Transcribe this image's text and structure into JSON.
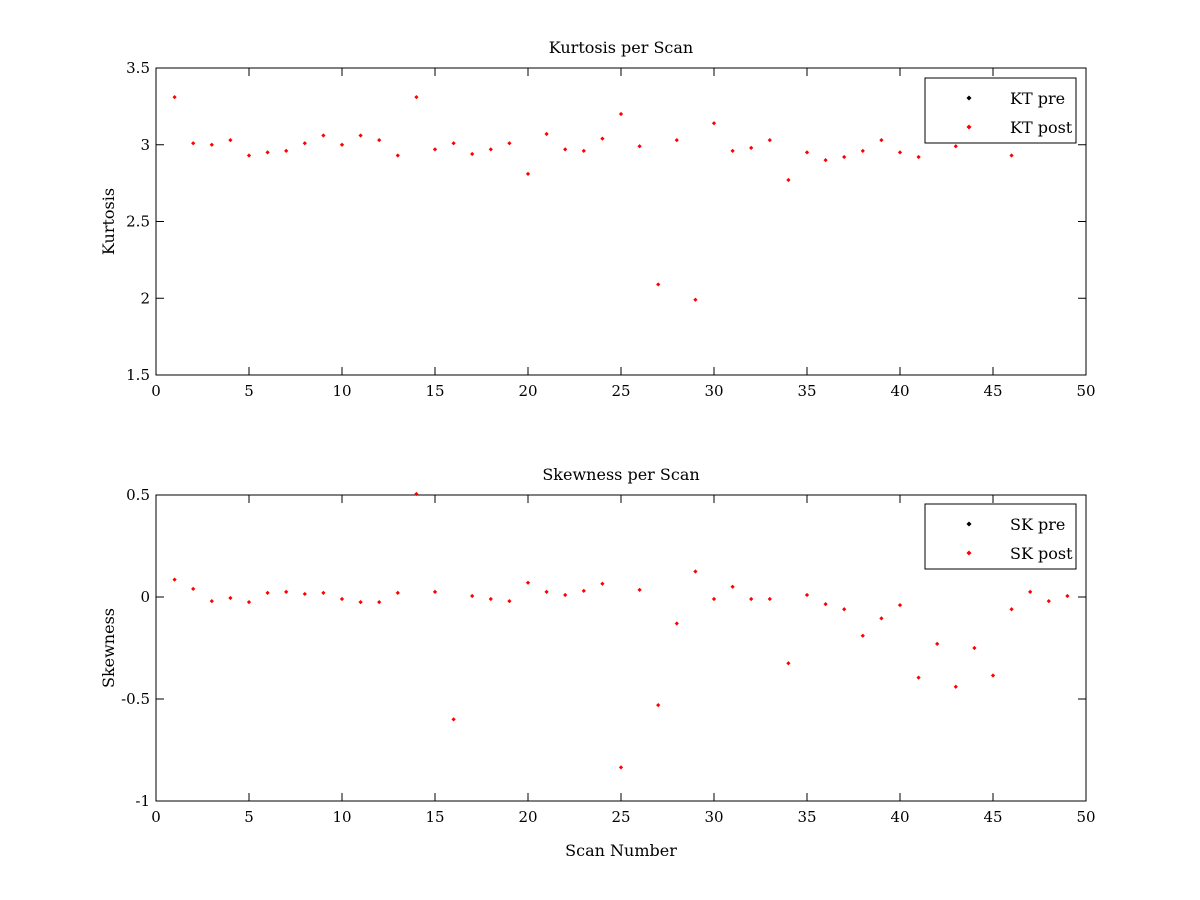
{
  "figure": {
    "background": "#ffffff"
  },
  "chart_data": [
    {
      "id": "kurtosis",
      "type": "scatter",
      "title": "Kurtosis per Scan",
      "xlabel": "",
      "ylabel": "Kurtosis",
      "xlim": [
        0,
        50
      ],
      "ylim": [
        1.5,
        3.5
      ],
      "xticks": [
        "0",
        "5",
        "10",
        "15",
        "20",
        "25",
        "30",
        "35",
        "40",
        "45",
        "50"
      ],
      "yticks": [
        "1.5",
        "2",
        "2.5",
        "3",
        "3.5"
      ],
      "grid": false,
      "legend_position": "top-right",
      "series": [
        {
          "name": "KT pre",
          "color": "#000000",
          "x": [],
          "y": []
        },
        {
          "name": "KT post",
          "color": "#ff0000",
          "x": [
            1,
            2,
            3,
            4,
            5,
            6,
            7,
            8,
            9,
            10,
            11,
            12,
            13,
            14,
            15,
            16,
            17,
            18,
            19,
            20,
            21,
            22,
            23,
            24,
            25,
            26,
            27,
            28,
            29,
            30,
            31,
            32,
            33,
            34,
            35,
            36,
            37,
            38,
            39,
            40,
            41,
            43,
            46
          ],
          "y": [
            3.31,
            3.01,
            3.0,
            3.03,
            2.93,
            2.95,
            2.96,
            3.01,
            3.06,
            3.0,
            3.06,
            3.03,
            2.93,
            3.31,
            2.97,
            3.01,
            2.94,
            2.97,
            3.01,
            2.81,
            3.07,
            2.97,
            2.96,
            3.04,
            3.2,
            2.99,
            2.09,
            3.03,
            1.99,
            3.14,
            2.96,
            2.98,
            3.03,
            2.77,
            2.95,
            2.9,
            2.92,
            2.96,
            3.03,
            2.95,
            2.92,
            2.99,
            2.93
          ]
        }
      ]
    },
    {
      "id": "skewness",
      "type": "scatter",
      "title": "Skewness per Scan",
      "xlabel": "Scan Number",
      "ylabel": "Skewness",
      "xlim": [
        0,
        50
      ],
      "ylim": [
        -1,
        0.5
      ],
      "xticks": [
        "0",
        "5",
        "10",
        "15",
        "20",
        "25",
        "30",
        "35",
        "40",
        "45",
        "50"
      ],
      "yticks": [
        "-1",
        "-0.5",
        "0",
        "0.5"
      ],
      "grid": false,
      "legend_position": "top-right",
      "series": [
        {
          "name": "SK pre",
          "color": "#000000",
          "x": [],
          "y": []
        },
        {
          "name": "SK post",
          "color": "#ff0000",
          "x": [
            1,
            2,
            3,
            4,
            5,
            6,
            7,
            8,
            9,
            10,
            11,
            12,
            13,
            14,
            15,
            16,
            17,
            18,
            19,
            20,
            21,
            22,
            23,
            24,
            25,
            26,
            27,
            28,
            29,
            30,
            31,
            32,
            33,
            34,
            35,
            36,
            37,
            38,
            39,
            40,
            41,
            42,
            43,
            44,
            45,
            46,
            47,
            48,
            49
          ],
          "y": [
            0.085,
            0.04,
            -0.02,
            -0.005,
            -0.025,
            0.02,
            0.025,
            0.015,
            0.02,
            -0.01,
            -0.025,
            -0.025,
            0.02,
            0.505,
            0.025,
            -0.6,
            0.005,
            -0.01,
            -0.02,
            0.07,
            0.025,
            0.01,
            0.03,
            0.065,
            -0.835,
            0.035,
            -0.53,
            -0.13,
            0.125,
            -0.01,
            0.05,
            -0.01,
            -0.01,
            -0.325,
            0.01,
            -0.035,
            -0.06,
            -0.19,
            -0.105,
            -0.04,
            -0.395,
            -0.23,
            -0.44,
            -0.25,
            -0.385,
            -0.06,
            0.025,
            -0.02,
            0.005
          ]
        }
      ]
    }
  ]
}
